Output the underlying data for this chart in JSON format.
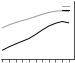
{
  "x": [
    0,
    1,
    2,
    3,
    4,
    5,
    6,
    7,
    8,
    9,
    10
  ],
  "queensland": [
    0.62,
    0.635,
    0.648,
    0.66,
    0.672,
    0.69,
    0.71,
    0.728,
    0.74,
    0.748,
    0.742
  ],
  "australia": [
    0.72,
    0.733,
    0.743,
    0.752,
    0.76,
    0.77,
    0.78,
    0.788,
    0.794,
    0.796,
    0.792
  ],
  "qld_color": "#000000",
  "aus_color": "#999999",
  "background": "#ffffff",
  "xlim": [
    -0.2,
    10.8
  ],
  "ylim": [
    0.58,
    0.84
  ],
  "n_xticks": 11,
  "legend_line_colors": [
    "#999999",
    "#000000"
  ],
  "legend_texts": [
    "",
    ""
  ]
}
